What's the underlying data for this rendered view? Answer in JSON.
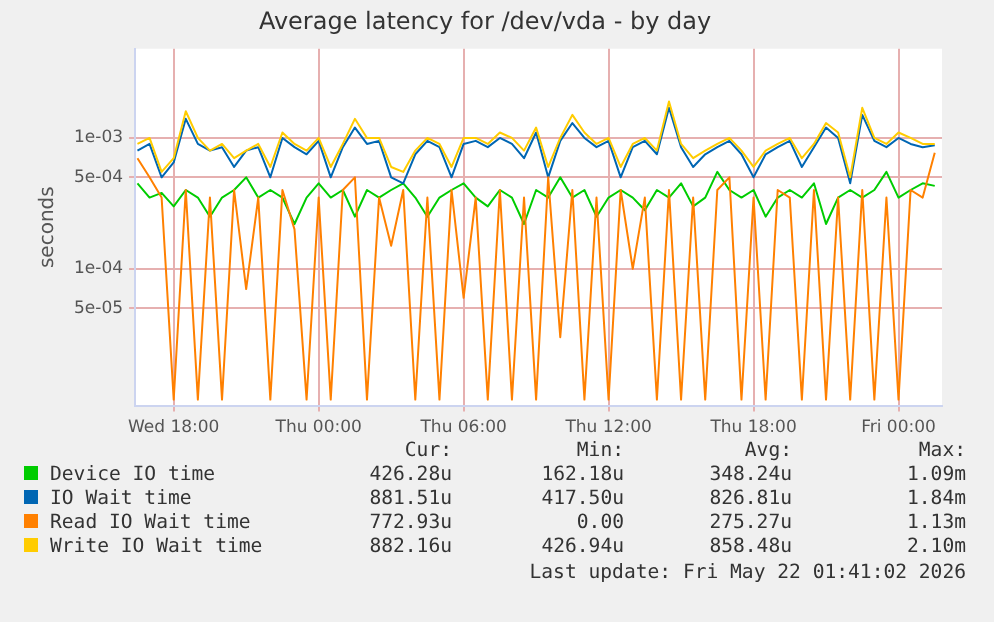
{
  "chart_data": {
    "type": "line",
    "title": "Average latency for /dev/vda - by day",
    "ylabel": "seconds",
    "log": "y",
    "grid": true,
    "legend": "bottom",
    "marker": "none",
    "x": [
      "2026-05-20T16:30",
      "2026-05-20T17:00",
      "2026-05-20T17:30",
      "2026-05-20T18:00",
      "2026-05-20T18:30",
      "2026-05-20T19:00",
      "2026-05-20T19:30",
      "2026-05-20T20:00",
      "2026-05-20T20:30",
      "2026-05-20T21:00",
      "2026-05-20T21:30",
      "2026-05-20T22:00",
      "2026-05-20T22:30",
      "2026-05-20T23:00",
      "2026-05-20T23:30",
      "2026-05-21T00:00",
      "2026-05-21T00:30",
      "2026-05-21T01:00",
      "2026-05-21T01:30",
      "2026-05-21T02:00",
      "2026-05-21T02:30",
      "2026-05-21T03:00",
      "2026-05-21T03:30",
      "2026-05-21T04:00",
      "2026-05-21T04:30",
      "2026-05-21T05:00",
      "2026-05-21T05:30",
      "2026-05-21T06:00",
      "2026-05-21T06:30",
      "2026-05-21T07:00",
      "2026-05-21T07:30",
      "2026-05-21T08:00",
      "2026-05-21T08:30",
      "2026-05-21T09:00",
      "2026-05-21T09:30",
      "2026-05-21T10:00",
      "2026-05-21T10:30",
      "2026-05-21T11:00",
      "2026-05-21T11:30",
      "2026-05-21T12:00",
      "2026-05-21T12:30",
      "2026-05-21T13:00",
      "2026-05-21T13:30",
      "2026-05-21T14:00",
      "2026-05-21T14:30",
      "2026-05-21T15:00",
      "2026-05-21T15:30",
      "2026-05-21T16:00",
      "2026-05-21T16:30",
      "2026-05-21T17:00",
      "2026-05-21T17:30",
      "2026-05-21T18:00",
      "2026-05-21T18:30",
      "2026-05-21T19:00",
      "2026-05-21T19:30",
      "2026-05-21T20:00",
      "2026-05-21T20:30",
      "2026-05-21T21:00",
      "2026-05-21T21:30",
      "2026-05-21T22:00",
      "2026-05-21T22:30",
      "2026-05-21T23:00",
      "2026-05-21T23:30",
      "2026-05-22T00:00",
      "2026-05-22T00:30",
      "2026-05-22T01:00",
      "2026-05-22T01:30"
    ],
    "xlim": [
      "2026-05-20T16:24",
      "2026-05-22T01:48"
    ],
    "xticks": [
      {
        "value": "2026-05-20T18:00",
        "label": "Wed 18:00"
      },
      {
        "value": "2026-05-21T00:00",
        "label": "Thu 00:00"
      },
      {
        "value": "2026-05-21T06:00",
        "label": "Thu 06:00"
      },
      {
        "value": "2026-05-21T12:00",
        "label": "Thu 12:00"
      },
      {
        "value": "2026-05-21T18:00",
        "label": "Thu 18:00"
      },
      {
        "value": "2026-05-22T00:00",
        "label": "Fri 00:00"
      }
    ],
    "ylim": [
      9e-06,
      0.0048
    ],
    "yticks": [
      {
        "value": 5e-05,
        "label": "5e-05"
      },
      {
        "value": 0.0001,
        "label": "1e-04"
      },
      {
        "value": 0.0005,
        "label": "5e-04"
      },
      {
        "value": 0.001,
        "label": "1e-03"
      }
    ],
    "series": [
      {
        "name": "Device IO time",
        "color": "#00cc00",
        "values": [
          0.00045,
          0.00035,
          0.00038,
          0.0003,
          0.0004,
          0.00035,
          0.00025,
          0.00035,
          0.0004,
          0.0005,
          0.00035,
          0.0004,
          0.00035,
          0.00022,
          0.00035,
          0.00045,
          0.00035,
          0.0004,
          0.00025,
          0.0004,
          0.00035,
          0.0004,
          0.00045,
          0.00035,
          0.00025,
          0.00035,
          0.0004,
          0.00045,
          0.00035,
          0.0003,
          0.0004,
          0.00035,
          0.00022,
          0.0004,
          0.00035,
          0.0005,
          0.00035,
          0.0004,
          0.00025,
          0.00035,
          0.0004,
          0.00035,
          0.00028,
          0.0004,
          0.00035,
          0.00045,
          0.0003,
          0.00035,
          0.00055,
          0.0004,
          0.00035,
          0.0004,
          0.00025,
          0.00035,
          0.0004,
          0.00035,
          0.00045,
          0.00022,
          0.00035,
          0.0004,
          0.00035,
          0.0004,
          0.00055,
          0.00035,
          0.0004,
          0.00045,
          0.00043
        ]
      },
      {
        "name": "IO Wait time",
        "color": "#0066b3",
        "values": [
          0.0008,
          0.0009,
          0.0005,
          0.00065,
          0.0014,
          0.0009,
          0.0008,
          0.00085,
          0.0006,
          0.0008,
          0.00085,
          0.0005,
          0.001,
          0.00085,
          0.00075,
          0.00095,
          0.0005,
          0.00085,
          0.0012,
          0.0009,
          0.00095,
          0.0005,
          0.00045,
          0.00075,
          0.00095,
          0.00085,
          0.0005,
          0.0009,
          0.00095,
          0.00085,
          0.001,
          0.0009,
          0.0007,
          0.0011,
          0.0005,
          0.00095,
          0.0013,
          0.001,
          0.00085,
          0.00095,
          0.0005,
          0.00085,
          0.00095,
          0.00075,
          0.0017,
          0.00085,
          0.0006,
          0.00075,
          0.00085,
          0.00095,
          0.00075,
          0.0005,
          0.00075,
          0.00085,
          0.00095,
          0.0006,
          0.00085,
          0.0012,
          0.001,
          0.00045,
          0.0015,
          0.00095,
          0.00085,
          0.001,
          0.0009,
          0.00085,
          0.00088
        ]
      },
      {
        "name": "Read IO Wait time",
        "color": "#ff8000",
        "values": [
          0.0007,
          0.0005,
          0.00035,
          1e-05,
          0.0004,
          1e-05,
          0.00035,
          1e-05,
          0.0004,
          7e-05,
          0.00035,
          1e-05,
          0.0004,
          0.0002,
          1e-05,
          0.00035,
          1e-05,
          0.0004,
          0.0005,
          1e-05,
          0.00035,
          0.00015,
          0.0004,
          1e-05,
          0.00035,
          1e-05,
          0.0004,
          6e-05,
          0.00035,
          1e-05,
          0.0004,
          1e-05,
          0.00035,
          1e-05,
          0.0005,
          3e-05,
          0.0004,
          1e-05,
          0.00035,
          1e-05,
          0.0004,
          0.0001,
          0.00035,
          1e-05,
          0.0004,
          1e-05,
          0.00035,
          1e-05,
          0.0004,
          0.0005,
          1e-05,
          0.00035,
          1e-05,
          0.0004,
          0.00035,
          1e-05,
          0.0004,
          1e-05,
          0.00035,
          1e-05,
          0.0004,
          1e-05,
          0.00035,
          1e-05,
          0.0004,
          0.00035,
          0.00077
        ]
      },
      {
        "name": "Write IO Wait time",
        "color": "#ffcc00",
        "values": [
          0.0009,
          0.001,
          0.00055,
          0.0007,
          0.0016,
          0.001,
          0.0008,
          0.0009,
          0.0007,
          0.0008,
          0.0009,
          0.0006,
          0.0011,
          0.0009,
          0.0008,
          0.001,
          0.0006,
          0.0009,
          0.0014,
          0.001,
          0.001,
          0.0006,
          0.00055,
          0.0008,
          0.001,
          0.0009,
          0.0006,
          0.001,
          0.001,
          0.0009,
          0.0011,
          0.001,
          0.0008,
          0.0012,
          0.0006,
          0.001,
          0.0015,
          0.0011,
          0.0009,
          0.001,
          0.0006,
          0.0009,
          0.001,
          0.0008,
          0.0019,
          0.0009,
          0.0007,
          0.0008,
          0.0009,
          0.001,
          0.0008,
          0.0006,
          0.0008,
          0.0009,
          0.001,
          0.0007,
          0.0009,
          0.0013,
          0.0011,
          0.0005,
          0.0017,
          0.001,
          0.0009,
          0.0011,
          0.001,
          0.0009,
          0.0009
        ]
      }
    ],
    "annotations": [
      "Cur:",
      "Min:",
      "Avg:",
      "Max:",
      "426.28u",
      "162.18u",
      "348.24u",
      "1.09m",
      "881.51u",
      "417.50u",
      "826.81u",
      "1.84m",
      "772.93u",
      "0.00",
      "275.27u",
      "1.13m",
      "882.16u",
      "426.94u",
      "858.48u",
      "2.10m",
      "Last update: Fri May 22 01:41:02 2026"
    ]
  }
}
